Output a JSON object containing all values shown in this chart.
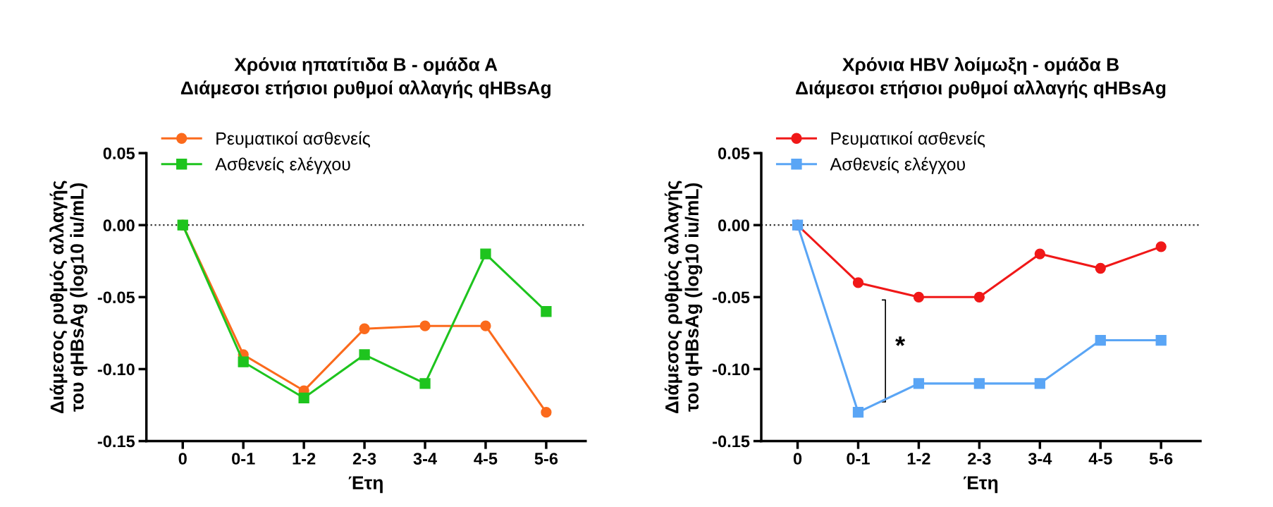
{
  "chart_data": [
    {
      "type": "line",
      "title": "Χρόνια ηπατίτιδα Β - ομάδα Α\nΔιάμεσοι ετήσιοι ρυθμοί αλλαγής qHBsAg",
      "xlabel": "Έτη",
      "ylabel": "Διάμεσος ρυθμός αλλαγής\nτου qHBsAg (log10 iu/mL)",
      "categories": [
        "0",
        "0-1",
        "1-2",
        "2-3",
        "3-4",
        "4-5",
        "5-6"
      ],
      "series": [
        {
          "name": "Ρευματικοί ασθενείς",
          "color": "#fb6a1c",
          "marker": "circle",
          "values": [
            0,
            -0.09,
            -0.115,
            -0.072,
            -0.07,
            -0.07,
            -0.13
          ]
        },
        {
          "name": "Ασθενείς ελέγχου",
          "color": "#1ec41e",
          "marker": "square",
          "values": [
            0,
            -0.095,
            -0.12,
            -0.09,
            -0.11,
            -0.02,
            -0.06
          ]
        }
      ],
      "ylim": [
        -0.15,
        0.05
      ],
      "yticks": [
        {
          "value": -0.15,
          "label": "-0.15"
        },
        {
          "value": -0.1,
          "label": "-0.10"
        },
        {
          "value": -0.05,
          "label": "-0.05"
        },
        {
          "value": 0,
          "label": "0.00"
        },
        {
          "value": 0.05,
          "label": "0.05"
        }
      ],
      "ref_lines": [
        {
          "axis": "y",
          "value": 0,
          "color": "#333333",
          "line_style": "dotted"
        }
      ],
      "grid": false,
      "legend": "top left",
      "line_style": "solid"
    },
    {
      "type": "line",
      "title": "Χρόνια HBV λοίμωξη - ομάδα Β\nΔιάμεσοι ετήσιοι ρυθμοί αλλαγής qHBsAg",
      "xlabel": "Έτη",
      "ylabel": "Διάμεσος ρυθμός αλλαγής\nτου qHBsAg (log10 iu/mL)",
      "categories": [
        "0",
        "0-1",
        "1-2",
        "2-3",
        "3-4",
        "4-5",
        "5-6"
      ],
      "series": [
        {
          "name": "Ρευματικοί ασθενείς",
          "color": "#f01818",
          "marker": "circle",
          "values": [
            0,
            -0.04,
            -0.05,
            -0.05,
            -0.02,
            -0.03,
            -0.015
          ]
        },
        {
          "name": "Ασθενείς ελέγχου",
          "color": "#5aa5f5",
          "marker": "square",
          "values": [
            0,
            -0.13,
            -0.11,
            -0.11,
            -0.11,
            -0.08,
            -0.08
          ]
        }
      ],
      "ylim": [
        -0.15,
        0.05
      ],
      "yticks": [
        {
          "value": -0.15,
          "label": "-0.15"
        },
        {
          "value": -0.1,
          "label": "-0.10"
        },
        {
          "value": -0.05,
          "label": "-0.05"
        },
        {
          "value": 0,
          "label": "0.00"
        },
        {
          "value": 0.05,
          "label": "0.05"
        }
      ],
      "ref_lines": [
        {
          "axis": "y",
          "value": 0,
          "color": "#333333",
          "line_style": "dotted"
        }
      ],
      "annotations": [
        "*"
      ],
      "grid": false,
      "legend": "top left",
      "line_style": "solid"
    }
  ]
}
